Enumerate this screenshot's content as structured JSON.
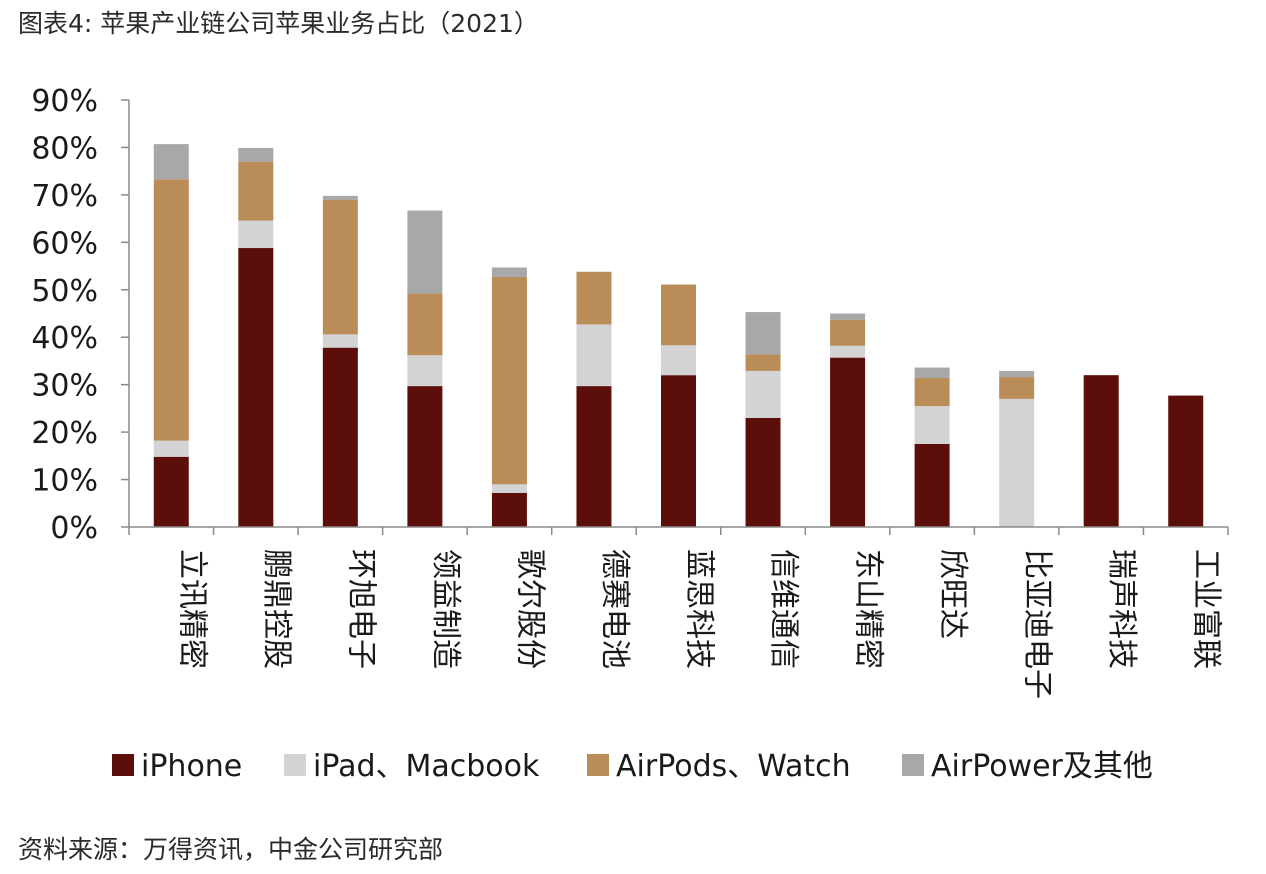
{
  "figure_title": "图表4: 苹果产业链公司苹果业务占比（2021）",
  "source_note": "资料来源：万得资讯，中金公司研究部",
  "chart_data": {
    "type": "bar",
    "stacked": true,
    "categories": [
      "立讯精密",
      "鹏鼎控股",
      "环旭电子",
      "领益制造",
      "歌尔股份",
      "德赛电池",
      "蓝思科技",
      "信维通信",
      "东山精密",
      "欣旺达",
      "比亚迪电子",
      "瑞声科技",
      "工业富联"
    ],
    "series": [
      {
        "name": "iPhone",
        "color": "#5c0f0a",
        "values": [
          14.8,
          58.8,
          37.8,
          29.7,
          7.2,
          29.7,
          32.0,
          23.0,
          35.7,
          17.5,
          0,
          32.0,
          27.7
        ]
      },
      {
        "name": "iPad、Macbook",
        "color": "#d3d3d3",
        "values": [
          3.4,
          5.8,
          2.8,
          6.5,
          1.8,
          13.0,
          6.3,
          9.9,
          2.5,
          8.0,
          27.0,
          0,
          0
        ]
      },
      {
        "name": "AirPods、Watch",
        "color": "#b98c58",
        "values": [
          55.1,
          12.4,
          28.4,
          13.0,
          43.7,
          11.1,
          12.8,
          3.5,
          5.5,
          5.9,
          4.6,
          0,
          0
        ]
      },
      {
        "name": "AirPower及其他",
        "color": "#a8a8a8",
        "values": [
          7.4,
          2.9,
          0.8,
          17.5,
          2.0,
          0,
          0,
          8.9,
          1.3,
          2.2,
          1.3,
          0,
          0
        ]
      }
    ],
    "y_ticks": [
      "0%",
      "10%",
      "20%",
      "30%",
      "40%",
      "50%",
      "60%",
      "70%",
      "80%",
      "90%"
    ],
    "ylim": [
      0,
      90
    ],
    "y_unit": "%",
    "grid": false,
    "legend_position": "bottom"
  }
}
